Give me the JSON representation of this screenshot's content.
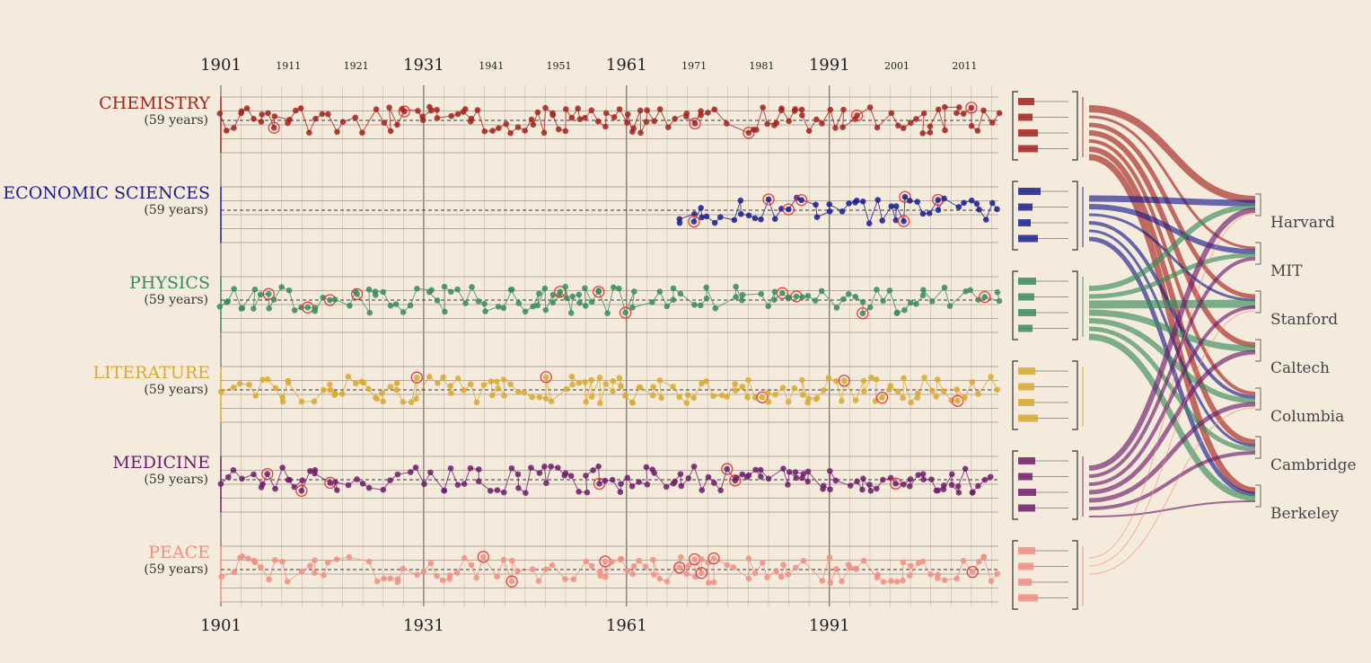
{
  "chart_data": {
    "type": "scatter",
    "title": "",
    "x_range": [
      1901,
      2016
    ],
    "major_years": [
      1901,
      1931,
      1961,
      1991
    ],
    "minor_years": [
      1911,
      1921,
      1941,
      1951,
      1971,
      1981,
      2001,
      2011
    ],
    "bottom_years": [
      1901,
      1931,
      1961,
      1991
    ],
    "years_suffix": "(59 years)",
    "categories": [
      {
        "name": "CHEMISTRY",
        "color": "#a3231d",
        "start": 1901,
        "sub": "(59 years)",
        "bars": [
          18,
          16,
          22,
          22
        ]
      },
      {
        "name": "ECONOMIC SCIENCES",
        "color": "#1c1f8f",
        "start": 1969,
        "sub": "(59 years)",
        "bars": [
          25,
          16,
          14,
          22
        ]
      },
      {
        "name": "PHYSICS",
        "color": "#3a8c5c",
        "start": 1901,
        "sub": "(59 years)",
        "bars": [
          20,
          18,
          20,
          16
        ]
      },
      {
        "name": "LITERATURE",
        "color": "#d9a933",
        "start": 1901,
        "sub": "(59 years)",
        "bars": [
          19,
          18,
          18,
          22
        ]
      },
      {
        "name": "MEDICINE",
        "color": "#6e1d6b",
        "start": 1901,
        "sub": "(59 years)",
        "bars": [
          19,
          16,
          20,
          19
        ]
      },
      {
        "name": "PEACE",
        "color": "#f08f84",
        "start": 1901,
        "sub": "(59 years)",
        "bars": [
          19,
          17,
          15,
          22
        ]
      }
    ],
    "institutions": [
      "Harvard",
      "MIT",
      "Stanford",
      "Caltech",
      "Columbia",
      "Cambridge",
      "Berkeley"
    ],
    "flows": [
      {
        "from": "CHEMISTRY",
        "to": "Harvard",
        "weight": 8
      },
      {
        "from": "CHEMISTRY",
        "to": "MIT",
        "weight": 3
      },
      {
        "from": "CHEMISTRY",
        "to": "Stanford",
        "weight": 5
      },
      {
        "from": "CHEMISTRY",
        "to": "Caltech",
        "weight": 6
      },
      {
        "from": "CHEMISTRY",
        "to": "Columbia",
        "weight": 4
      },
      {
        "from": "CHEMISTRY",
        "to": "Cambridge",
        "weight": 6
      },
      {
        "from": "CHEMISTRY",
        "to": "Berkeley",
        "weight": 7
      },
      {
        "from": "ECONOMIC SCIENCES",
        "to": "Harvard",
        "weight": 7
      },
      {
        "from": "ECONOMIC SCIENCES",
        "to": "MIT",
        "weight": 6
      },
      {
        "from": "ECONOMIC SCIENCES",
        "to": "Stanford",
        "weight": 3
      },
      {
        "from": "ECONOMIC SCIENCES",
        "to": "Columbia",
        "weight": 4
      },
      {
        "from": "ECONOMIC SCIENCES",
        "to": "Cambridge",
        "weight": 3
      },
      {
        "from": "ECONOMIC SCIENCES",
        "to": "Berkeley",
        "weight": 5
      },
      {
        "from": "PHYSICS",
        "to": "Harvard",
        "weight": 6
      },
      {
        "from": "PHYSICS",
        "to": "MIT",
        "weight": 5
      },
      {
        "from": "PHYSICS",
        "to": "Stanford",
        "weight": 9
      },
      {
        "from": "PHYSICS",
        "to": "Caltech",
        "weight": 7
      },
      {
        "from": "PHYSICS",
        "to": "Columbia",
        "weight": 6
      },
      {
        "from": "PHYSICS",
        "to": "Cambridge",
        "weight": 5
      },
      {
        "from": "PHYSICS",
        "to": "Berkeley",
        "weight": 7
      },
      {
        "from": "MEDICINE",
        "to": "Harvard",
        "weight": 6
      },
      {
        "from": "MEDICINE",
        "to": "MIT",
        "weight": 4
      },
      {
        "from": "MEDICINE",
        "to": "Stanford",
        "weight": 4
      },
      {
        "from": "MEDICINE",
        "to": "Caltech",
        "weight": 5
      },
      {
        "from": "MEDICINE",
        "to": "Columbia",
        "weight": 5
      },
      {
        "from": "MEDICINE",
        "to": "Cambridge",
        "weight": 4
      },
      {
        "from": "MEDICINE",
        "to": "Berkeley",
        "weight": 2
      },
      {
        "from": "PEACE",
        "to": "Harvard",
        "weight": 1
      },
      {
        "from": "PEACE",
        "to": "Stanford",
        "weight": 1
      },
      {
        "from": "PEACE",
        "to": "Columbia",
        "weight": 1
      }
    ]
  }
}
